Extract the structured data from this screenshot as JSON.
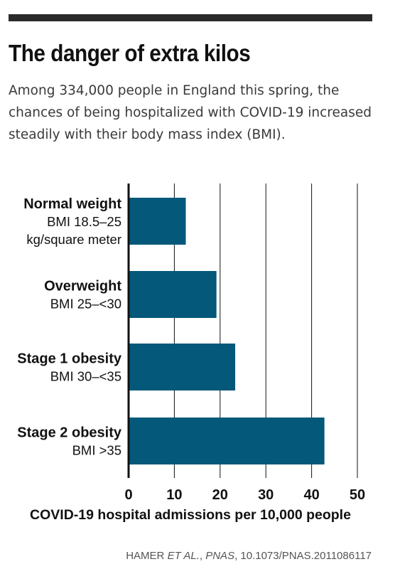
{
  "header": {
    "title": "The danger of extra kilos",
    "subtitle": "Among 334,000 people in England this spring, the chances of being hospitalized with COVID-19 increased steadily with their body mass index (BMI)."
  },
  "source": {
    "authors": "HAMER ",
    "etal": "ET AL.",
    "sep": ", ",
    "journal": "PNAS",
    "doi": ", 10.1073/PNAS.2011086117"
  },
  "colors": {
    "bar": "#04587a",
    "axis": "#111111",
    "grid": "#111111"
  },
  "chart_data": {
    "type": "bar",
    "orientation": "horizontal",
    "categories": [
      {
        "name": "Normal weight",
        "detail": [
          "BMI 18.5–25",
          "kg/square meter"
        ]
      },
      {
        "name": "Overweight",
        "detail": [
          "BMI 25–<30"
        ]
      },
      {
        "name": "Stage 1 obesity",
        "detail": [
          "BMI 30–<35"
        ]
      },
      {
        "name": "Stage 2 obesity",
        "detail": [
          "BMI >35"
        ]
      }
    ],
    "values": [
      12.5,
      19.2,
      23.3,
      42.8
    ],
    "xlabel": "COVID-19 hospital admissions per 10,000 people",
    "xlim": [
      0,
      50
    ],
    "xticks": [
      0,
      10,
      20,
      30,
      40,
      50
    ],
    "grid": true
  }
}
